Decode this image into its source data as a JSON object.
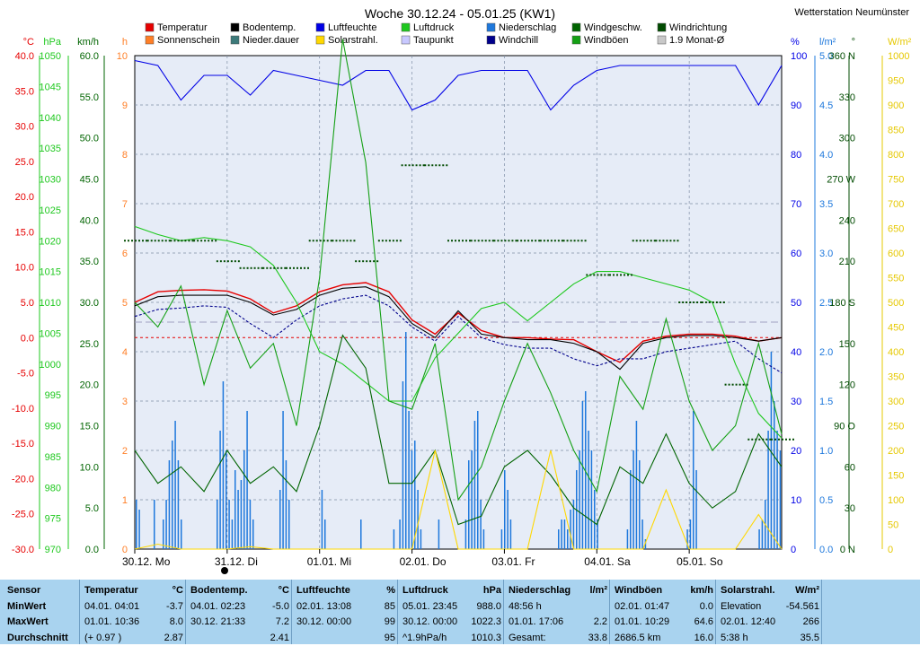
{
  "header": {
    "title": "Woche 30.12.24 - 05.01.25 (KW1)",
    "station": "Wetterstation Neumünster"
  },
  "legend": [
    {
      "label": "Temperatur",
      "color": "#e60000"
    },
    {
      "label": "Sonnenschein",
      "color": "#ff7f27"
    },
    {
      "label": "Bodentemp.",
      "color": "#000000"
    },
    {
      "label": "Nieder.dauer",
      "color": "#3d7a7a"
    },
    {
      "label": "Luftfeuchte",
      "color": "#0000e6"
    },
    {
      "label": "Solarstrahl.",
      "color": "#ffd800"
    },
    {
      "label": "Luftdruck",
      "color": "#1ec81e"
    },
    {
      "label": "Taupunkt",
      "color": "#c8c8ff"
    },
    {
      "label": "Niederschlag",
      "color": "#1e78dc"
    },
    {
      "label": "Windchill",
      "color": "#00008c"
    },
    {
      "label": "Windgeschw.",
      "color": "#006400"
    },
    {
      "label": "Windböen",
      "color": "#14a014"
    },
    {
      "label": "Windrichtung",
      "color": "#004b00"
    },
    {
      "label": "1.9 Monat-Ø",
      "color": "#c8c8c8"
    }
  ],
  "axes_left": [
    {
      "unit": "°C",
      "color": "#e60000",
      "ticks": [
        "40.0",
        "35.0",
        "30.0",
        "25.0",
        "20.0",
        "15.0",
        "10.0",
        "5.0",
        "0.0",
        "-5.0",
        "-10.0",
        "-15.0",
        "-20.0",
        "-25.0",
        "-30.0"
      ]
    },
    {
      "unit": "hPa",
      "color": "#1ec81e",
      "ticks": [
        "1050",
        "1045",
        "1040",
        "1035",
        "1030",
        "1025",
        "1020",
        "1015",
        "1010",
        "1005",
        "1000",
        "995",
        "990",
        "985",
        "980",
        "975",
        "970"
      ]
    },
    {
      "unit": "km/h",
      "color": "#006400",
      "ticks": [
        "60.0",
        "55.0",
        "50.0",
        "45.0",
        "40.0",
        "35.0",
        "30.0",
        "25.0",
        "20.0",
        "15.0",
        "10.0",
        "5.0",
        "0.0"
      ]
    },
    {
      "unit": "h",
      "color": "#ff7f27",
      "ticks": [
        "10",
        "9",
        "8",
        "7",
        "6",
        "5",
        "4",
        "3",
        "2",
        "1",
        "0"
      ]
    }
  ],
  "axes_right": [
    {
      "unit": "%",
      "color": "#0000e6",
      "ticks": [
        "100",
        "90",
        "80",
        "70",
        "60",
        "50",
        "40",
        "30",
        "20",
        "10",
        "0"
      ]
    },
    {
      "unit": "l/m²",
      "color": "#1e78dc",
      "ticks": [
        "5.0",
        "4.5",
        "4.0",
        "3.5",
        "3.0",
        "2.5",
        "2.0",
        "1.5",
        "1.0",
        "0.5",
        "0.0"
      ]
    },
    {
      "unit": "°",
      "color": "#004b00",
      "ticks": [
        "360 N",
        "330",
        "300",
        "270 W",
        "240",
        "210",
        "180 S",
        "150",
        "120",
        "90 O",
        "60",
        "30",
        "0 N"
      ]
    },
    {
      "unit": "W/m²",
      "color": "#e6c800",
      "ticks": [
        "1000",
        "950",
        "900",
        "850",
        "800",
        "750",
        "700",
        "650",
        "600",
        "550",
        "500",
        "450",
        "400",
        "350",
        "300",
        "250",
        "200",
        "150",
        "100",
        "50",
        "0"
      ]
    }
  ],
  "x_labels": [
    "30.12. Mo",
    "31.12. Di",
    "01.01. Mi",
    "02.01. Do",
    "03.01. Fr",
    "04.01. Sa",
    "05.01. So"
  ],
  "stats": {
    "row_labels": [
      "Sensor",
      "MinWert",
      "MaxWert",
      "Durchschnitt"
    ],
    "columns": [
      {
        "name": "Temperatur",
        "unit": "°C",
        "rows": [
          [
            "04.01.  04:01",
            "-3.7"
          ],
          [
            "01.01.  10:36",
            "8.0"
          ],
          [
            "(+ 0.97 )",
            "2.87"
          ]
        ]
      },
      {
        "name": "Bodentemp.",
        "unit": "°C",
        "rows": [
          [
            "04.01.  02:23",
            "-5.0"
          ],
          [
            "30.12.  21:33",
            "7.2"
          ],
          [
            "",
            "2.41"
          ]
        ]
      },
      {
        "name": "Luftfeuchte",
        "unit": "%",
        "rows": [
          [
            "02.01.  13:08",
            "85"
          ],
          [
            "30.12.  00:00",
            "99"
          ],
          [
            "",
            "95"
          ]
        ]
      },
      {
        "name": "Luftdruck",
        "unit": "hPa",
        "rows": [
          [
            "05.01.  23:45",
            "988.0"
          ],
          [
            "30.12.  00:00",
            "1022.3"
          ],
          [
            "^1.9hPa/h",
            "1010.3"
          ]
        ]
      },
      {
        "name": "Niederschlag",
        "unit": "l/m²",
        "rows": [
          [
            "48:56 h",
            ""
          ],
          [
            "01.01.  17:06",
            "2.2"
          ],
          [
            "Gesamt:",
            "33.8"
          ]
        ]
      },
      {
        "name": "Windböen",
        "unit": "km/h",
        "rows": [
          [
            "02.01.  01:47",
            "0.0"
          ],
          [
            "01.01.  10:29",
            "64.6"
          ],
          [
            "2686.5 km",
            "16.0"
          ]
        ]
      },
      {
        "name": "Solarstrahl.",
        "unit": "W/m²",
        "rows": [
          [
            "Elevation",
            "-54.561"
          ],
          [
            "02.01.  12:40",
            "266"
          ],
          [
            "5:38 h",
            "35.5"
          ]
        ]
      }
    ]
  },
  "chart_data": {
    "type": "line",
    "title": "Woche 30.12.24 - 05.01.25 (KW1)",
    "x_unit_days": [
      "30.12.",
      "31.12.",
      "01.01.",
      "02.01.",
      "03.01.",
      "04.01.",
      "05.01."
    ],
    "x_days": [
      0,
      0.25,
      0.5,
      0.75,
      1,
      1.25,
      1.5,
      1.75,
      2,
      2.25,
      2.5,
      2.75,
      3,
      3.25,
      3.5,
      3.75,
      4,
      4.25,
      4.5,
      4.75,
      5,
      5.25,
      5.5,
      5.75,
      6,
      6.25,
      6.5,
      6.75,
      7
    ],
    "series": [
      {
        "name": "Temperatur",
        "unit": "°C",
        "axis": "temp",
        "color": "#e60000",
        "values": [
          5.0,
          6.5,
          6.7,
          6.8,
          6.6,
          5.5,
          3.5,
          4.5,
          6.5,
          7.5,
          7.8,
          6.5,
          2.5,
          0.5,
          3.5,
          1.0,
          0.0,
          0.0,
          -0.2,
          -0.3,
          -2.0,
          -3.5,
          -0.5,
          0.2,
          0.5,
          0.5,
          0.2,
          -0.5,
          0.0
        ]
      },
      {
        "name": "Bodentemp.",
        "unit": "°C",
        "axis": "temp",
        "color": "#000000",
        "values": [
          4.5,
          5.8,
          6.0,
          6.0,
          6.0,
          5.0,
          3.2,
          4.0,
          6.0,
          7.0,
          7.2,
          5.8,
          2.0,
          0.0,
          3.8,
          0.5,
          0.0,
          -0.3,
          -0.3,
          -0.8,
          -2.0,
          -4.5,
          -0.8,
          0.0,
          0.3,
          0.3,
          0.0,
          -0.5,
          0.0
        ]
      },
      {
        "name": "Taupunkt",
        "unit": "°C",
        "axis": "temp",
        "color": "#00008c",
        "values": [
          3.0,
          4.0,
          4.2,
          4.5,
          4.3,
          2.0,
          0.0,
          2.5,
          4.5,
          5.5,
          6.0,
          4.5,
          1.5,
          -0.5,
          3.0,
          0.0,
          -1.0,
          -1.5,
          -1.5,
          -3.0,
          -4.0,
          -3.0,
          -3.0,
          -2.0,
          -1.5,
          -1.0,
          -0.5,
          -3.0,
          -5.0
        ]
      },
      {
        "name": "Luftfeuchte",
        "unit": "%",
        "axis": "hum",
        "color": "#0000e6",
        "values": [
          99,
          98,
          91,
          96,
          96,
          92,
          97,
          96,
          95,
          94,
          97,
          97,
          89,
          91,
          96,
          97,
          97,
          97,
          89,
          94,
          97,
          98,
          98,
          98,
          98,
          98,
          98,
          90,
          98
        ]
      },
      {
        "name": "Luftdruck",
        "unit": "hPa",
        "axis": "press",
        "color": "#1ec81e",
        "values": [
          1022.3,
          1021,
          1020,
          1020.5,
          1020,
          1019,
          1016,
          1010,
          1002,
          1000,
          997,
          994,
          994,
          1001,
          1005,
          1009,
          1010,
          1007,
          1010,
          1013,
          1015,
          1015,
          1014,
          1013,
          1012,
          1010,
          1000,
          992,
          988
        ]
      },
      {
        "name": "Windböen",
        "unit": "km/h",
        "axis": "wind",
        "color": "#14a014",
        "values": [
          30,
          27,
          32,
          20,
          29,
          22,
          25,
          15,
          33,
          62,
          47,
          18,
          17,
          25,
          6,
          10,
          18,
          25,
          19,
          12,
          7,
          21,
          17,
          28,
          18,
          12,
          15,
          25,
          14
        ]
      },
      {
        "name": "Windgeschw.",
        "unit": "km/h",
        "axis": "wind",
        "color": "#006400",
        "values": [
          12,
          8,
          10,
          7,
          12,
          8,
          10,
          7,
          15,
          26,
          22,
          8,
          8,
          12,
          3,
          4,
          10,
          12,
          9,
          5,
          3,
          10,
          8,
          14,
          8,
          5,
          7,
          14,
          10
        ]
      },
      {
        "name": "Windrichtung",
        "unit": "°",
        "axis": "dir",
        "color": "#004b00",
        "values": [
          225,
          225,
          225,
          225,
          210,
          205,
          205,
          205,
          225,
          225,
          210,
          225,
          280,
          280,
          225,
          225,
          225,
          225,
          225,
          225,
          200,
          200,
          225,
          225,
          180,
          180,
          120,
          80,
          80
        ]
      },
      {
        "name": "Solarstrahl.",
        "unit": "W/m²",
        "axis": "solar",
        "color": "#ffd800",
        "values": [
          0,
          10,
          0,
          0,
          0,
          5,
          0,
          0,
          0,
          0,
          0,
          0,
          0,
          200,
          0,
          0,
          0,
          0,
          200,
          0,
          0,
          0,
          0,
          120,
          0,
          0,
          0,
          70,
          0
        ]
      }
    ],
    "niederschlag_l_m2": [
      0.5,
      0.4,
      0,
      0,
      0,
      0,
      0.5,
      0,
      0,
      0.3,
      0.5,
      0.9,
      1.1,
      1.3,
      0.9,
      0.3,
      0,
      0,
      0,
      0,
      0,
      0,
      0,
      0,
      0,
      0,
      0,
      0.5,
      1.2,
      1.7,
      1.0,
      0.5,
      0.3,
      0.8,
      0.6,
      0.7,
      1.0,
      1.4,
      0.5,
      0.3,
      0,
      0,
      0,
      0,
      0,
      0,
      0,
      0,
      0.6,
      1.4,
      0.9,
      0.5,
      0,
      0,
      0,
      0,
      0,
      0,
      0,
      0,
      0,
      0,
      0.6,
      0.3,
      0,
      0,
      0,
      0,
      0,
      0,
      0,
      0,
      0,
      0,
      0,
      0.3,
      0,
      0,
      0,
      0,
      0,
      0,
      0,
      0,
      0,
      0,
      0.2,
      0,
      0.3,
      1.7,
      2.2,
      1.4,
      1.0,
      1.1,
      0.6,
      0.2,
      0,
      0,
      0,
      0,
      0,
      0.3,
      0,
      0,
      0,
      0,
      0,
      0,
      0,
      0,
      0.3,
      0.9,
      1.0,
      1.3,
      1.4,
      0.5,
      0.2,
      0,
      0,
      0,
      0,
      0,
      0.2,
      0.8,
      0.6,
      0.3,
      0,
      0,
      0,
      0,
      0,
      0,
      0,
      0,
      0,
      0,
      0,
      0,
      0,
      0,
      0,
      0.2,
      0.3,
      0.3,
      0.2,
      0.4,
      0.5,
      0.8,
      1.0,
      1.5,
      1.6,
      1.2,
      1.0,
      0.6,
      0.3,
      0,
      0,
      0,
      0,
      0,
      0,
      0,
      0,
      0,
      0.2,
      0.8,
      1.0,
      1.3,
      0.9,
      0.3,
      0.1,
      0,
      0,
      0,
      0,
      0,
      0,
      0,
      0,
      0,
      0,
      0,
      0,
      0,
      0.2,
      0.3,
      1.4,
      0.8,
      0,
      0,
      0,
      0,
      0,
      0,
      0,
      0,
      0,
      0,
      0,
      0,
      0,
      0,
      0,
      0,
      0,
      0,
      0,
      0,
      0.2,
      0.3,
      0.5,
      1.2,
      2.0,
      1.5,
      1.2,
      1.0
    ],
    "y_ranges": {
      "temp": [
        -30,
        40
      ],
      "press": [
        970,
        1050
      ],
      "wind": [
        0,
        60
      ],
      "hum": [
        0,
        100
      ],
      "rain": [
        0,
        5
      ],
      "dir": [
        0,
        360
      ],
      "solar": [
        0,
        1000
      ]
    }
  }
}
